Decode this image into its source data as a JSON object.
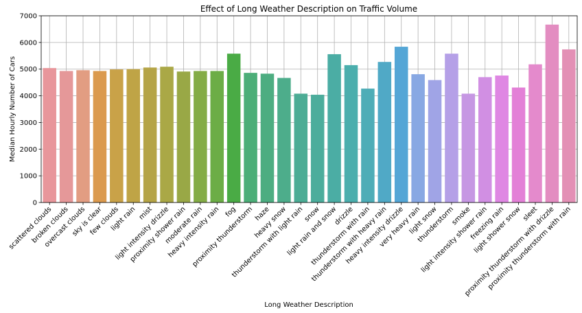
{
  "chart_data": {
    "type": "bar",
    "title": "Effect of Long Weather Description on Traffic Volume",
    "xlabel": "Long Weather Description",
    "ylabel": "Median Hourly Number of Cars",
    "ylim": [
      0,
      7000
    ],
    "yticks": [
      0,
      1000,
      2000,
      3000,
      4000,
      5000,
      6000,
      7000
    ],
    "grid": true,
    "categories": [
      "scattered clouds",
      "broken clouds",
      "overcast clouds",
      "sky is clear",
      "few clouds",
      "light rain",
      "mist",
      "light intensity drizzle",
      "proximity shower rain",
      "moderate rain",
      "heavy intensity rain",
      "fog",
      "proximity thunderstorm",
      "haze",
      "heavy snow",
      "thunderstorm with light rain",
      "snow",
      "light rain and snow",
      "drizzle",
      "thunderstorm with rain",
      "thunderstorm with heavy rain",
      "heavy intensity drizzle",
      "very heavy rain",
      "light snow",
      "thunderstorm",
      "smoke",
      "light intensity shower rain",
      "freezing rain",
      "light shower snow",
      "sleet",
      "proximity thunderstorm with drizzle",
      "proximity thunderstorm with rain"
    ],
    "values": [
      5040,
      4930,
      4960,
      4930,
      4990,
      5000,
      5060,
      5090,
      4910,
      4930,
      4930,
      5580,
      4860,
      4830,
      4670,
      4080,
      4040,
      5560,
      5150,
      4270,
      5270,
      5840,
      4810,
      4590,
      5580,
      4080,
      4700,
      4760,
      4310,
      5180,
      6670,
      5740
    ],
    "colors": [
      "#e8969b",
      "#e59899",
      "#e29d82",
      "#db9a4e",
      "#c9a248",
      "#bfa446",
      "#b5a446",
      "#aaa846",
      "#99a846",
      "#84ac46",
      "#6cad46",
      "#4aab45",
      "#4cae78",
      "#4dad81",
      "#4dad8b",
      "#4cac95",
      "#4cad9c",
      "#4bada4",
      "#4baead",
      "#4eadb7",
      "#50a9c6",
      "#54a6d6",
      "#88a8e3",
      "#a0a4e6",
      "#b5a0e7",
      "#c697e3",
      "#d18fe3",
      "#df87e3",
      "#e380d7",
      "#e48acc",
      "#e38dc1",
      "#e390b5"
    ]
  }
}
